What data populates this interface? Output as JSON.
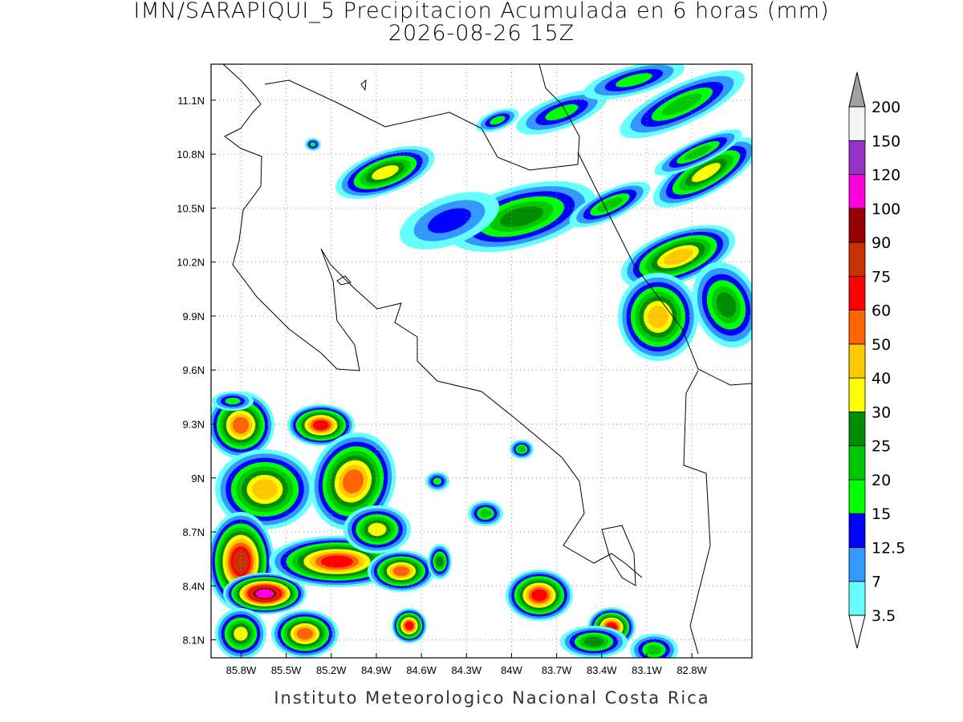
{
  "header": {
    "title": "IMN/SARAPIQUI_5 Precipitacion Acumulada en 6 horas (mm)",
    "subtitle": "2026-08-26 15Z"
  },
  "map": {
    "xlim": [
      -86.0,
      -82.4
    ],
    "ylim": [
      8.0,
      11.3
    ],
    "grid": true,
    "xticks": [
      {
        "value": -85.8,
        "label": "85.8W"
      },
      {
        "value": -85.5,
        "label": "85.5W"
      },
      {
        "value": -85.2,
        "label": "85.2W"
      },
      {
        "value": -84.9,
        "label": "84.9W"
      },
      {
        "value": -84.6,
        "label": "84.6W"
      },
      {
        "value": -84.3,
        "label": "84.3W"
      },
      {
        "value": -84.0,
        "label": "84W"
      },
      {
        "value": -83.7,
        "label": "83.7W"
      },
      {
        "value": -83.4,
        "label": "83.4W"
      },
      {
        "value": -83.1,
        "label": "83.1W"
      },
      {
        "value": -82.8,
        "label": "82.8W"
      }
    ],
    "yticks": [
      {
        "value": 8.1,
        "label": "8.1N"
      },
      {
        "value": 8.4,
        "label": "8.4N"
      },
      {
        "value": 8.7,
        "label": "8.7N"
      },
      {
        "value": 9.0,
        "label": "9N"
      },
      {
        "value": 9.3,
        "label": "9.3N"
      },
      {
        "value": 9.6,
        "label": "9.6N"
      },
      {
        "value": 9.9,
        "label": "9.9N"
      },
      {
        "value": 10.2,
        "label": "10.2N"
      },
      {
        "value": 10.5,
        "label": "10.5N"
      },
      {
        "value": 10.8,
        "label": "10.8N"
      },
      {
        "value": 11.1,
        "label": "11.1N"
      }
    ]
  },
  "colorbar": {
    "levels": [
      3.5,
      7,
      12.5,
      15,
      20,
      25,
      30,
      40,
      50,
      60,
      75,
      90,
      100,
      120,
      150,
      200
    ],
    "colors": [
      "#66ffff",
      "#3399ff",
      "#0000ff",
      "#00ff00",
      "#00c800",
      "#008c00",
      "#ffff00",
      "#ffc800",
      "#ff6400",
      "#ff0000",
      "#c83200",
      "#960000",
      "#ff00dc",
      "#9632c8",
      "#f4f4f4"
    ],
    "under_color": "#ffffff",
    "over_color": "#a0a0a0"
  },
  "footer": "Instituto Meteorologico Nacional Costa Rica"
}
